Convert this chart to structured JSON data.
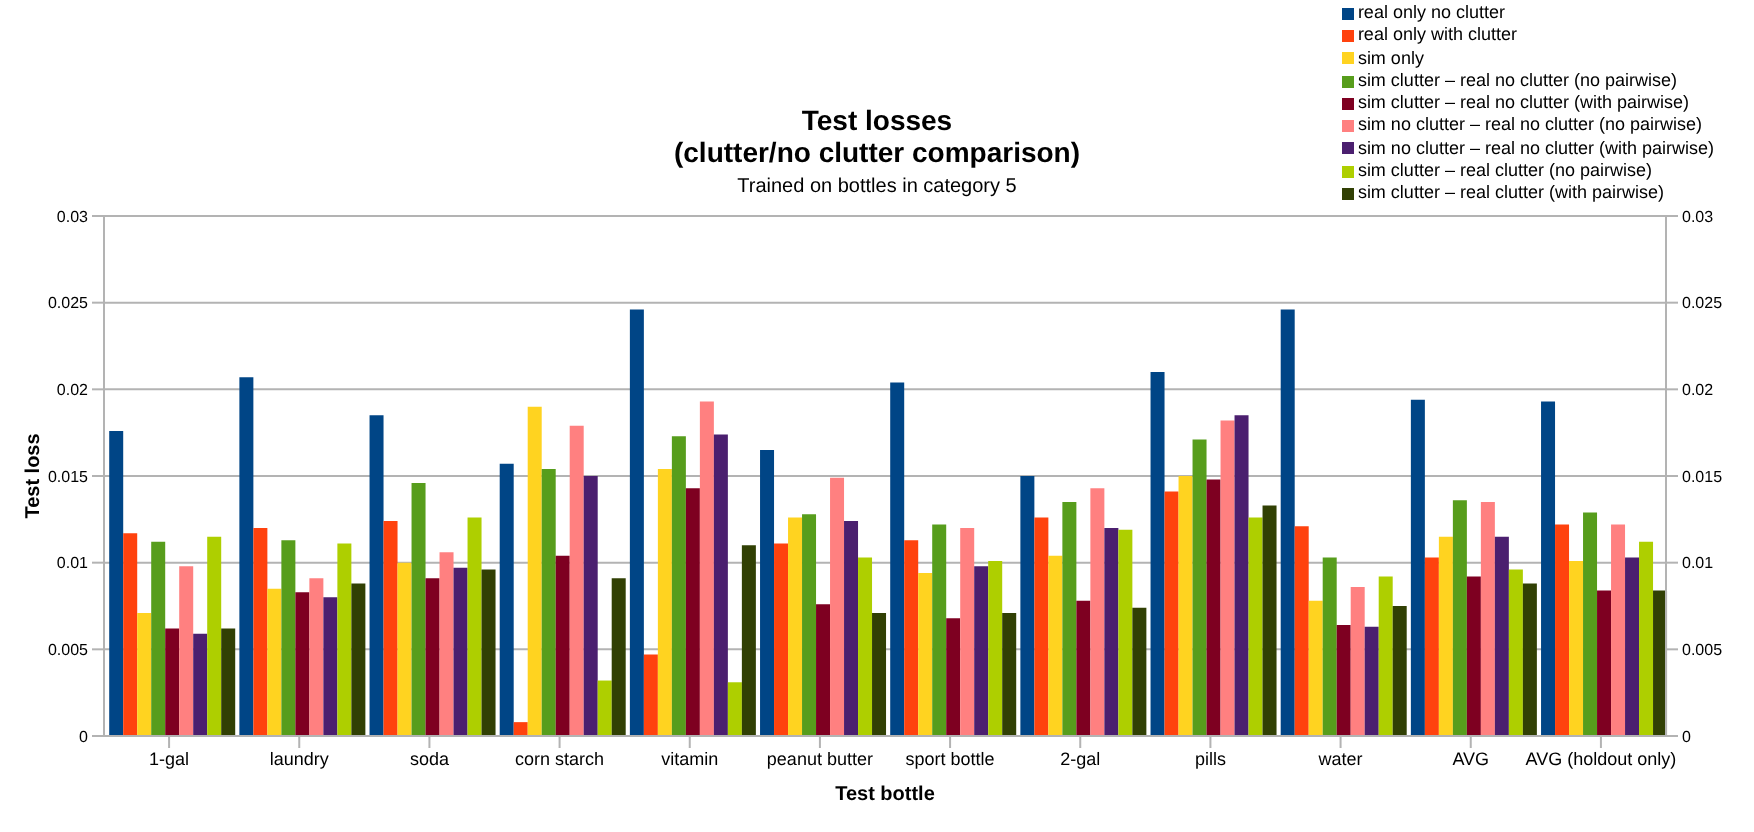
{
  "chart_data": {
    "type": "bar",
    "title": "Test losses\n(clutter/no clutter comparison)",
    "subtitle": "Trained on bottles in category 5",
    "xlabel": "Test bottle",
    "ylabel": "Test loss",
    "categories": [
      "1-gal",
      "laundry",
      "soda",
      "corn starch",
      "vitamin",
      "peanut butter",
      "sport bottle",
      "2-gal",
      "pills",
      "water",
      "AVG",
      "AVG (holdout only)"
    ],
    "series": [
      {
        "name": "real only no clutter",
        "color": "#004586",
        "values": [
          0.0176,
          0.0207,
          0.0185,
          0.0157,
          0.0246,
          0.0165,
          0.0204,
          0.015,
          0.021,
          0.0246,
          0.0194,
          0.0193
        ]
      },
      {
        "name": "real only with clutter",
        "color": "#ff420e",
        "values": [
          0.0117,
          0.012,
          0.0124,
          0.0008,
          0.0047,
          0.0111,
          0.0113,
          0.0126,
          0.0141,
          0.0121,
          0.0103,
          0.0122
        ]
      },
      {
        "name": "sim only",
        "color": "#ffd320",
        "values": [
          0.0071,
          0.0085,
          0.01,
          0.019,
          0.0154,
          0.0126,
          0.0094,
          0.0104,
          0.015,
          0.0078,
          0.0115,
          0.0101
        ]
      },
      {
        "name": "sim clutter – real no clutter (no pairwise)",
        "color": "#579d1c",
        "values": [
          0.0112,
          0.0113,
          0.0146,
          0.0154,
          0.0173,
          0.0128,
          0.0122,
          0.0135,
          0.0171,
          0.0103,
          0.0136,
          0.0129
        ]
      },
      {
        "name": "sim clutter – real no clutter (with pairwise)",
        "color": "#7e0021",
        "values": [
          0.0062,
          0.0083,
          0.0091,
          0.0104,
          0.0143,
          0.0076,
          0.0068,
          0.0078,
          0.0148,
          0.0064,
          0.0092,
          0.0084
        ]
      },
      {
        "name": "sim no clutter – real no clutter (no pairwise)",
        "color": "#ff8080",
        "values": [
          0.0098,
          0.0091,
          0.0106,
          0.0179,
          0.0193,
          0.0149,
          0.012,
          0.0143,
          0.0182,
          0.0086,
          0.0135,
          0.0122
        ]
      },
      {
        "name": "sim no clutter – real no clutter (with pairwise)",
        "color": "#4b1f6f",
        "values": [
          0.0059,
          0.008,
          0.0097,
          0.015,
          0.0174,
          0.0124,
          0.0098,
          0.012,
          0.0185,
          0.0063,
          0.0115,
          0.0103
        ]
      },
      {
        "name": "sim clutter – real clutter (no pairwise)",
        "color": "#aecf00",
        "values": [
          0.0115,
          0.0111,
          0.0126,
          0.0032,
          0.0031,
          0.0103,
          0.0101,
          0.0119,
          0.0126,
          0.0092,
          0.0096,
          0.0112
        ]
      },
      {
        "name": "sim clutter – real clutter (with pairwise)",
        "color": "#314004",
        "values": [
          0.0062,
          0.0088,
          0.0096,
          0.0091,
          0.011,
          0.0071,
          0.0071,
          0.0074,
          0.0133,
          0.0075,
          0.0088,
          0.0084
        ]
      }
    ],
    "ylim": [
      0,
      0.03
    ],
    "yticks": [
      0,
      0.005,
      0.01,
      0.015,
      0.02,
      0.025,
      0.03
    ],
    "y2lim": [
      0,
      0.03
    ],
    "y2ticks": [
      0,
      0.005,
      0.01,
      0.015,
      0.02,
      0.025,
      0.03
    ],
    "grid": "y",
    "legend": "top right"
  }
}
